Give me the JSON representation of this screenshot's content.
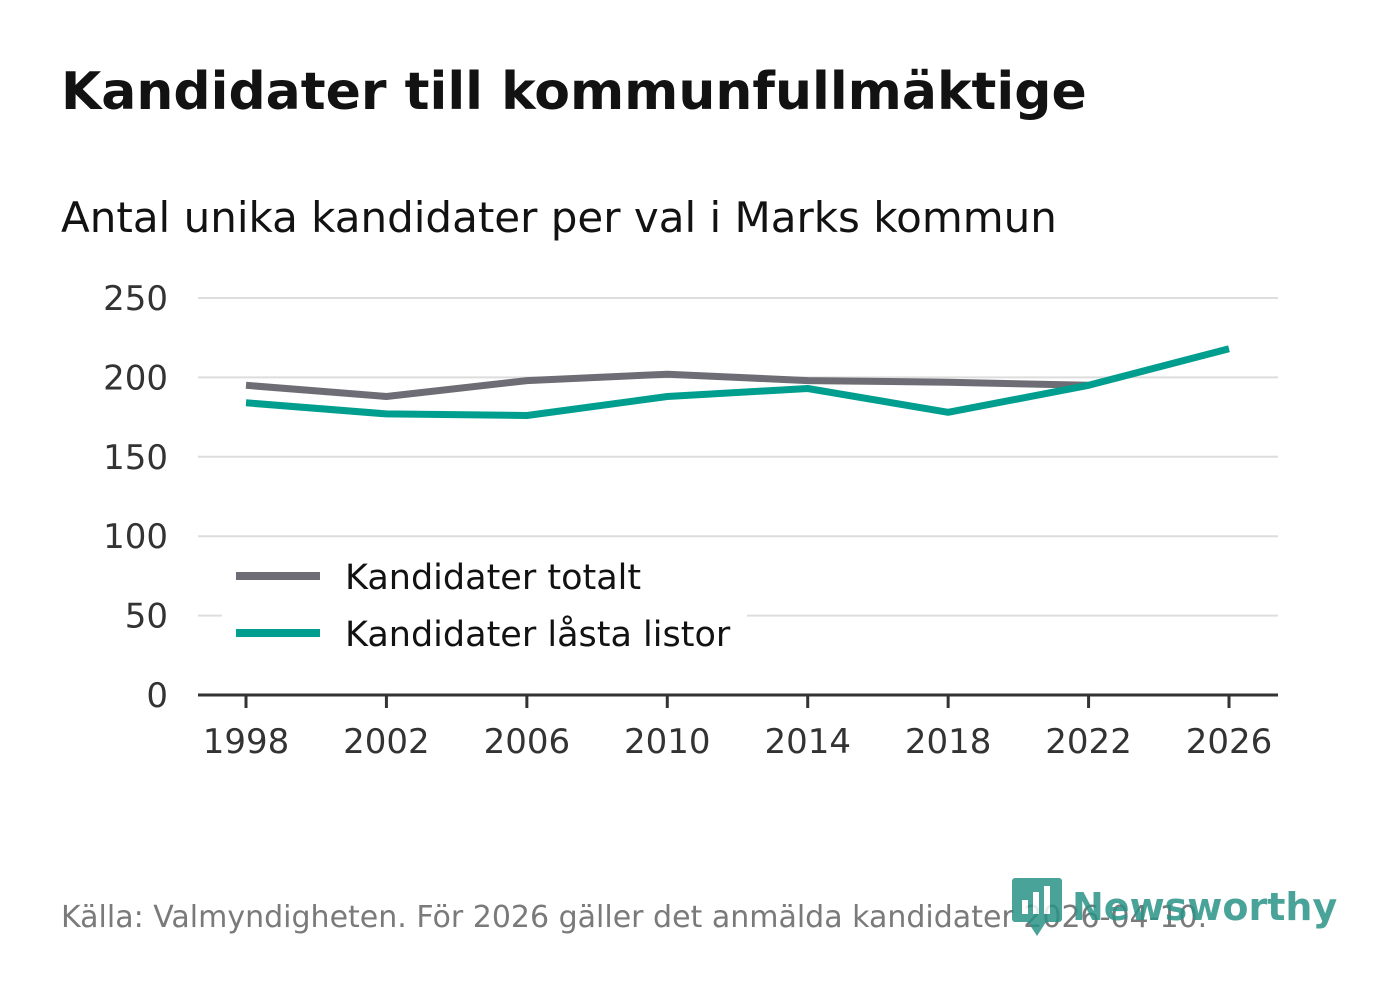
{
  "header": {
    "title": "Kandidater till kommunfullmäktige",
    "subtitle": "Antal unika kandidater per val i Marks kommun"
  },
  "footer": {
    "source": "Källa: Valmyndigheten. För 2026 gäller det anmälda kandidater 2026-04-10.",
    "brand": "Newsworthy"
  },
  "colors": {
    "total": "#6e6d75",
    "locked": "#009e8f",
    "grid": "#dddddd",
    "axis": "#333333",
    "brand": "#2a9387"
  },
  "chart_data": {
    "type": "line",
    "title": "Kandidater till kommunfullmäktige",
    "subtitle": "Antal unika kandidater per val i Marks kommun",
    "xlabel": "",
    "ylabel": "",
    "x": [
      1998,
      2002,
      2006,
      2010,
      2014,
      2018,
      2022,
      2026
    ],
    "x_ticks": [
      "1998",
      "2002",
      "2006",
      "2010",
      "2014",
      "2018",
      "2022",
      "2026"
    ],
    "y_ticks": [
      "0",
      "50",
      "100",
      "150",
      "200",
      "250"
    ],
    "ylim": [
      0,
      250
    ],
    "xlim": [
      1998,
      2026
    ],
    "grid": true,
    "legend_position": "bottom-left",
    "series": [
      {
        "name": "Kandidater totalt",
        "color": "#6e6d75",
        "values": [
          195,
          188,
          198,
          202,
          198,
          197,
          195,
          null
        ]
      },
      {
        "name": "Kandidater låsta listor",
        "color": "#009e8f",
        "values": [
          184,
          177,
          176,
          188,
          193,
          178,
          195,
          218
        ]
      }
    ]
  }
}
